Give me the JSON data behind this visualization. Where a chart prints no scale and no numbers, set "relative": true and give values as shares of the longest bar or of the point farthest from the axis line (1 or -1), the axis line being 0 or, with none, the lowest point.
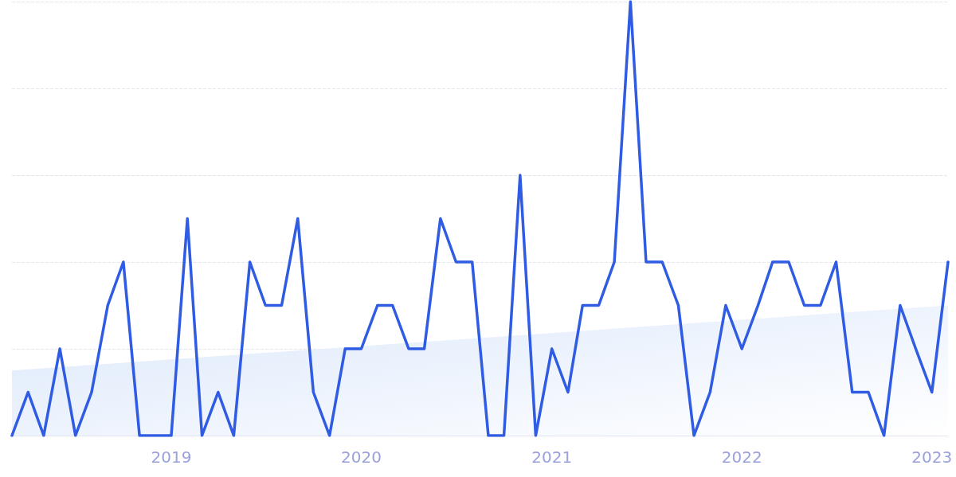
{
  "chart_data": {
    "type": "line",
    "relative": true,
    "grid": "y",
    "marker": "none",
    "line_style": "solid",
    "xlim": [
      "2018-03",
      "2023-02"
    ],
    "xticks": [
      {
        "value": "2019-01",
        "label": "2019"
      },
      {
        "value": "2020-01",
        "label": "2020"
      },
      {
        "value": "2021-01",
        "label": "2021"
      },
      {
        "value": "2022-01",
        "label": "2022"
      },
      {
        "value": "2023-01",
        "label": "2023"
      }
    ],
    "series": [
      {
        "type": "area",
        "color": "#dce8fb",
        "x": [
          "2018-03",
          "2023-02"
        ],
        "values": [
          0.15,
          0.3
        ]
      },
      {
        "type": "line",
        "color": "#2f5ce3",
        "x": [
          "2018-03",
          "2018-04",
          "2018-05",
          "2018-06",
          "2018-07",
          "2018-08",
          "2018-09",
          "2018-10",
          "2018-11",
          "2018-12",
          "2019-01",
          "2019-02",
          "2019-03",
          "2019-04",
          "2019-05",
          "2019-06",
          "2019-07",
          "2019-08",
          "2019-09",
          "2019-10",
          "2019-11",
          "2019-12",
          "2020-01",
          "2020-02",
          "2020-03",
          "2020-04",
          "2020-05",
          "2020-06",
          "2020-07",
          "2020-08",
          "2020-09",
          "2020-10",
          "2020-11",
          "2020-12",
          "2021-01",
          "2021-02",
          "2021-03",
          "2021-04",
          "2021-05",
          "2021-06",
          "2021-07",
          "2021-08",
          "2021-09",
          "2021-10",
          "2021-11",
          "2021-12",
          "2022-01",
          "2022-02",
          "2022-03",
          "2022-04",
          "2022-05",
          "2022-06",
          "2022-07",
          "2022-08",
          "2022-09",
          "2022-10",
          "2022-11",
          "2022-12",
          "2023-01",
          "2023-02"
        ],
        "values": [
          0,
          0.1,
          0,
          0.2,
          0,
          0.1,
          0.3,
          0.4,
          0,
          0,
          0,
          0.5,
          0,
          0.1,
          0,
          0.4,
          0.3,
          0.3,
          0.5,
          0.1,
          0,
          0.2,
          0.2,
          0.3,
          0.3,
          0.2,
          0.2,
          0.5,
          0.4,
          0.4,
          0,
          0,
          0.6,
          0,
          0.2,
          0.1,
          0.3,
          0.3,
          0.4,
          1,
          0.4,
          0.4,
          0.3,
          0,
          0.1,
          0.3,
          0.2,
          0.3,
          0.4,
          0.4,
          0.3,
          0.3,
          0.4,
          0.1,
          0.1,
          0,
          0.3,
          0.2,
          0.1,
          0.4
        ]
      }
    ]
  }
}
